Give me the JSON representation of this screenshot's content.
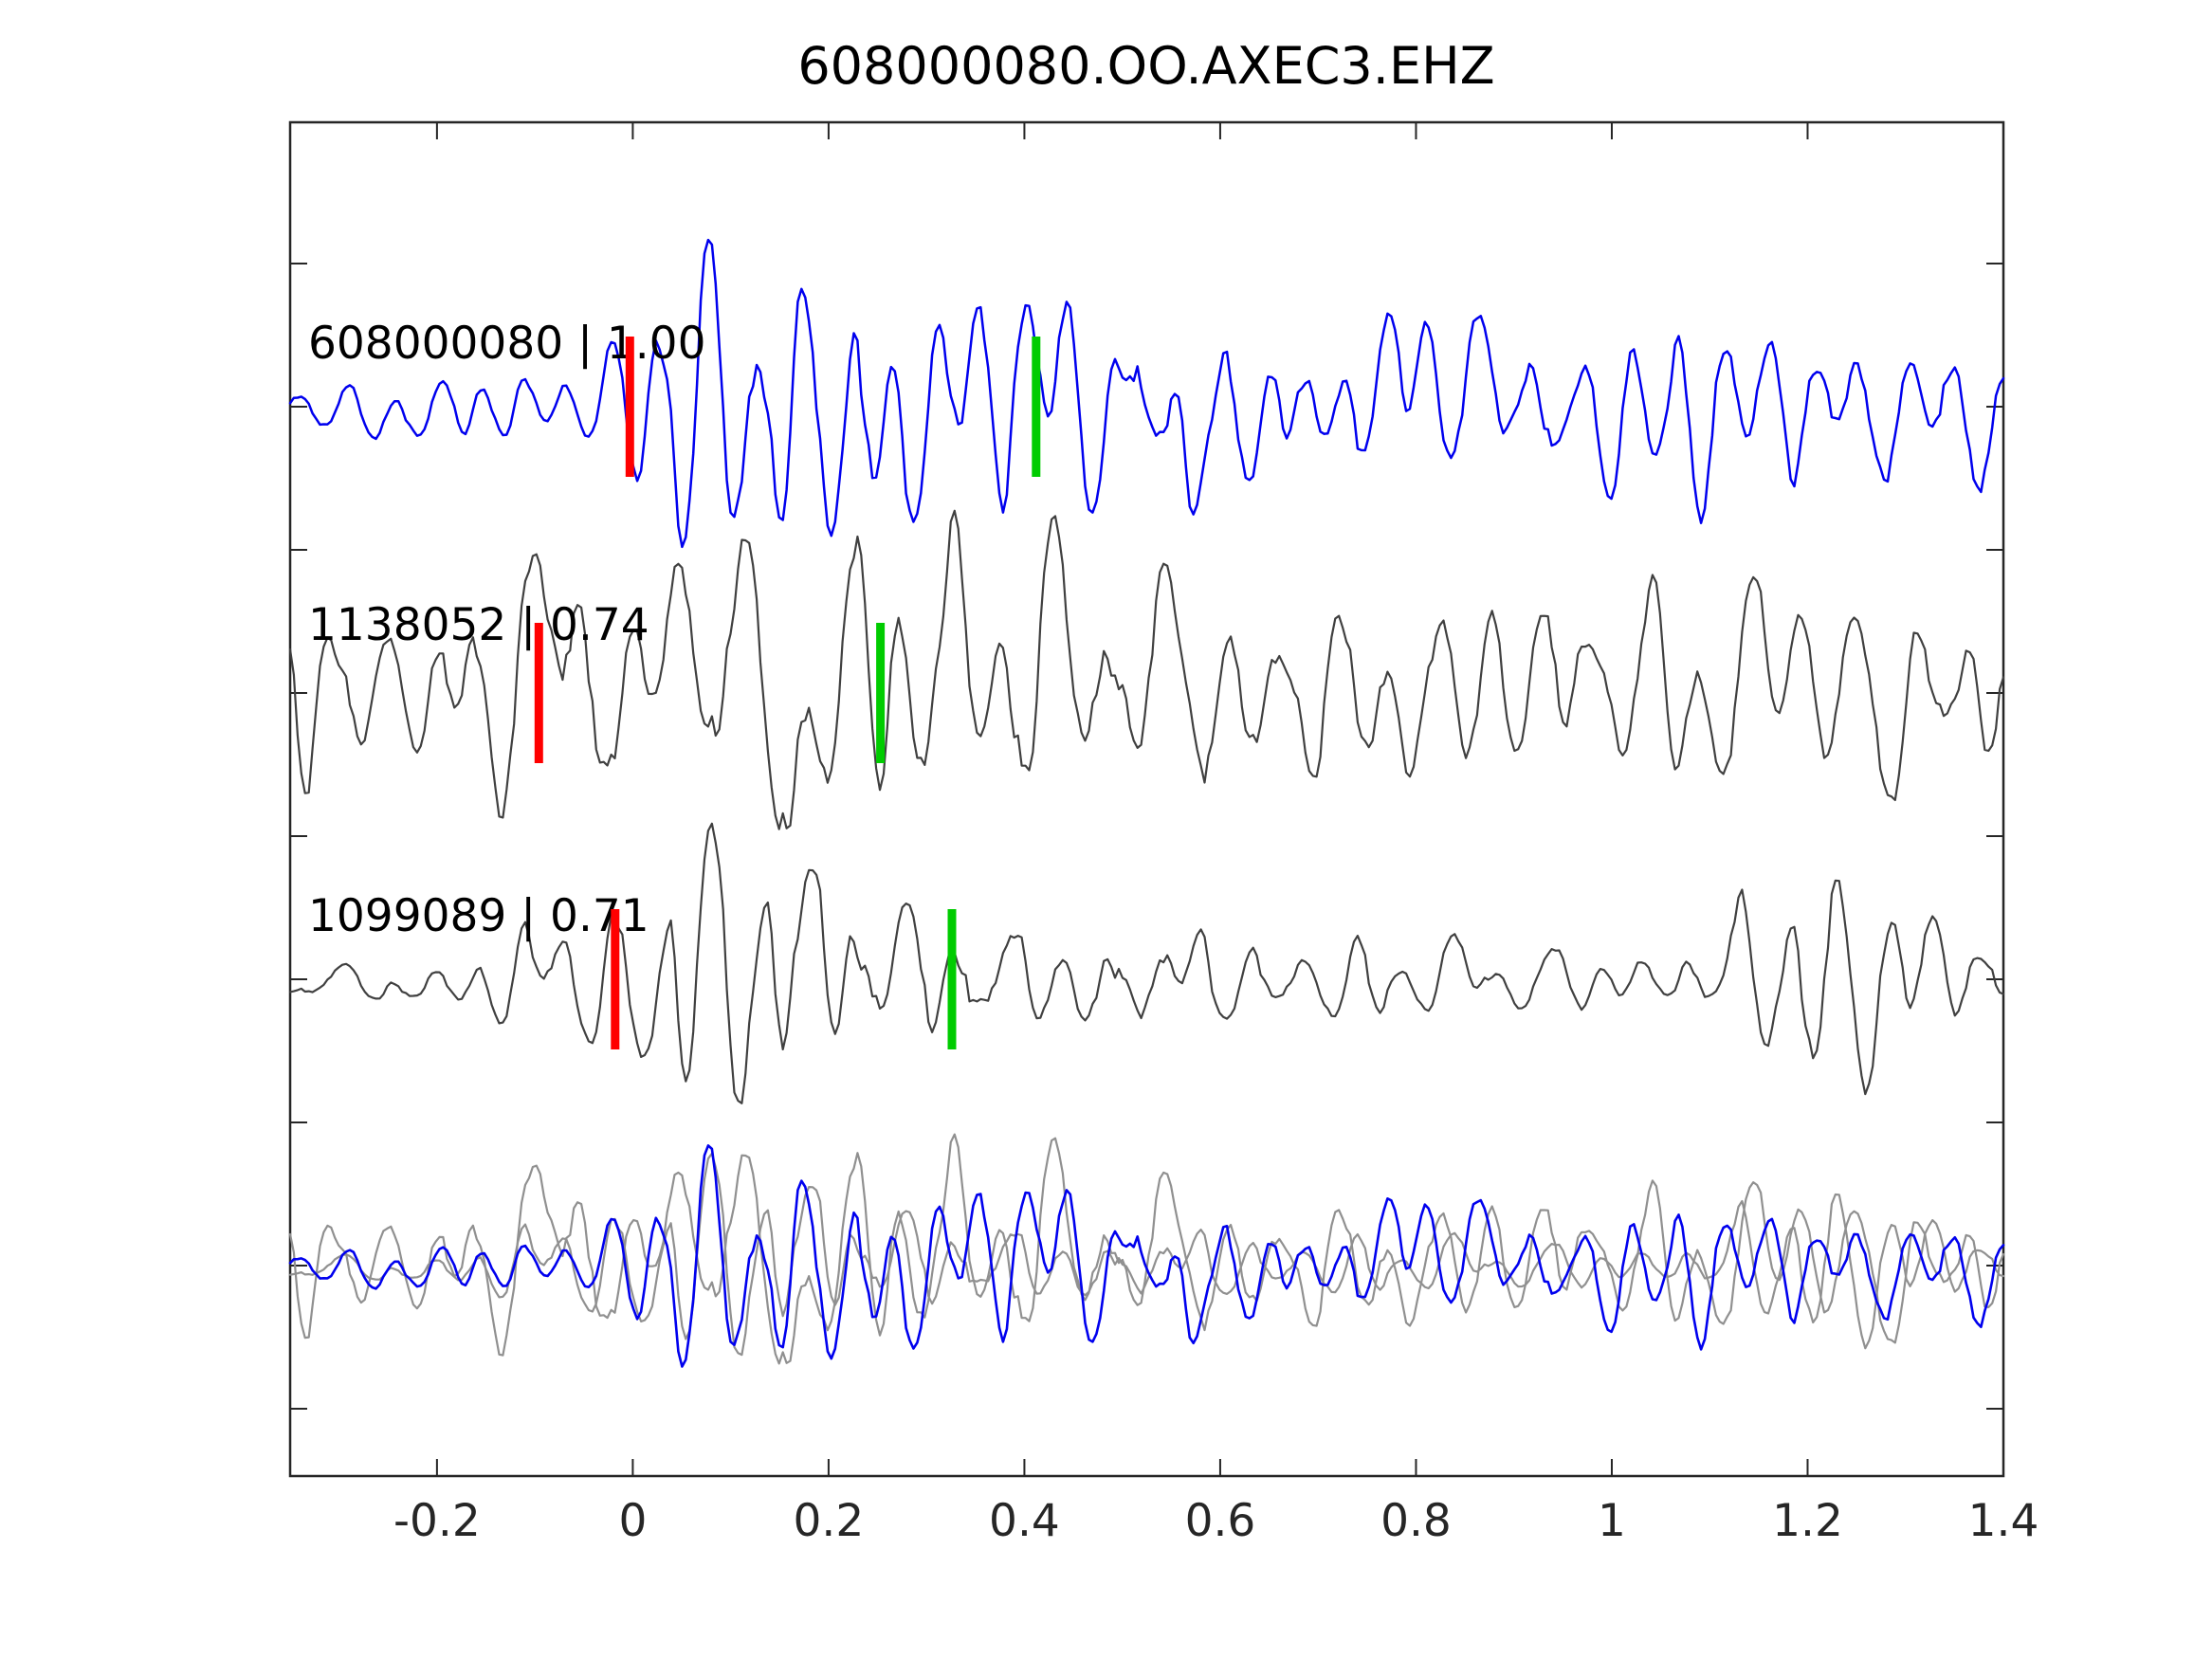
{
  "title": "608000080.OO.AXEC3.EHZ",
  "colors": {
    "template_trace": "#0000ee",
    "match_trace": "#404040",
    "overlay_gray": "#909090",
    "overlay_blue": "#0000ee",
    "pick_red": "#ff0000",
    "pick_green": "#00cc00",
    "axis": "#262626",
    "background": "#ffffff"
  },
  "axis": {
    "xlim": [
      -0.35,
      1.4
    ],
    "x_ticks": [
      "-0.2",
      "0",
      "0.2",
      "0.4",
      "0.6",
      "0.8",
      "1",
      "1.2",
      "1.4"
    ],
    "x_tick_values": [
      -0.2,
      0.0,
      0.2,
      0.4,
      0.6,
      0.8,
      1.0,
      1.2,
      1.4
    ],
    "y_tick_labels_shown": false,
    "grid": false
  },
  "chart_data": {
    "type": "line",
    "title": "608000080.OO.AXEC3.EHZ",
    "xlabel": "",
    "ylabel": "",
    "xlim": [
      -0.35,
      1.4
    ],
    "legend": "none",
    "traces": [
      {
        "id": "608000080",
        "label": "608000080 | 1.00",
        "correlation": 1.0,
        "row": 0,
        "color": "#0000ee",
        "picks": {
          "red_x": -0.003,
          "green_x": 0.412
        },
        "seed": 42,
        "period": 0.047,
        "envelope": [
          [
            -0.35,
            0.13
          ],
          [
            -0.08,
            0.14
          ],
          [
            -0.02,
            0.22
          ],
          [
            0.02,
            0.75
          ],
          [
            0.06,
            0.84
          ],
          [
            0.12,
            0.72
          ],
          [
            0.16,
            0.8
          ],
          [
            0.22,
            0.58
          ],
          [
            0.3,
            0.5
          ],
          [
            0.42,
            0.5
          ],
          [
            0.5,
            0.52
          ],
          [
            0.6,
            0.44
          ],
          [
            0.75,
            0.38
          ],
          [
            0.95,
            0.4
          ],
          [
            1.15,
            0.38
          ],
          [
            1.4,
            0.37
          ]
        ]
      },
      {
        "id": "1138052",
        "label": "1138052 | 0.74",
        "correlation": 0.74,
        "row": 1,
        "color": "#404040",
        "picks": {
          "red_x": -0.096,
          "green_x": 0.253
        },
        "seed": 7,
        "period": 0.054,
        "envelope": [
          [
            -0.35,
            0.5
          ],
          [
            -0.2,
            0.52
          ],
          [
            -0.1,
            0.62
          ],
          [
            0.0,
            0.68
          ],
          [
            0.1,
            0.66
          ],
          [
            0.2,
            0.62
          ],
          [
            0.3,
            0.68
          ],
          [
            0.4,
            0.62
          ],
          [
            0.5,
            0.52
          ],
          [
            0.65,
            0.44
          ],
          [
            0.8,
            0.46
          ],
          [
            0.95,
            0.5
          ],
          [
            1.1,
            0.46
          ],
          [
            1.25,
            0.46
          ],
          [
            1.4,
            0.42
          ]
        ]
      },
      {
        "id": "1099089",
        "label": "1099089 | 0.71",
        "correlation": 0.71,
        "row": 2,
        "color": "#404040",
        "picks": {
          "red_x": -0.018,
          "green_x": 0.326
        },
        "seed": 13,
        "period": 0.05,
        "envelope": [
          [
            -0.35,
            0.08
          ],
          [
            -0.18,
            0.1
          ],
          [
            -0.12,
            0.22
          ],
          [
            -0.06,
            0.26
          ],
          [
            -0.01,
            0.3
          ],
          [
            0.03,
            0.55
          ],
          [
            0.08,
            0.58
          ],
          [
            0.15,
            0.5
          ],
          [
            0.25,
            0.46
          ],
          [
            0.33,
            0.42
          ],
          [
            0.42,
            0.3
          ],
          [
            0.55,
            0.24
          ],
          [
            0.7,
            0.2
          ],
          [
            0.85,
            0.16
          ],
          [
            1.0,
            0.12
          ],
          [
            1.1,
            0.14
          ],
          [
            1.15,
            0.42
          ],
          [
            1.22,
            0.5
          ],
          [
            1.3,
            0.42
          ],
          [
            1.36,
            0.25
          ],
          [
            1.4,
            0.2
          ]
        ]
      }
    ],
    "overlay_row": {
      "row": 3,
      "gray_trace_ids": [
        "1138052",
        "1099089"
      ],
      "blue_trace_id": "608000080",
      "amp_factor": 0.72,
      "picks": null
    }
  }
}
